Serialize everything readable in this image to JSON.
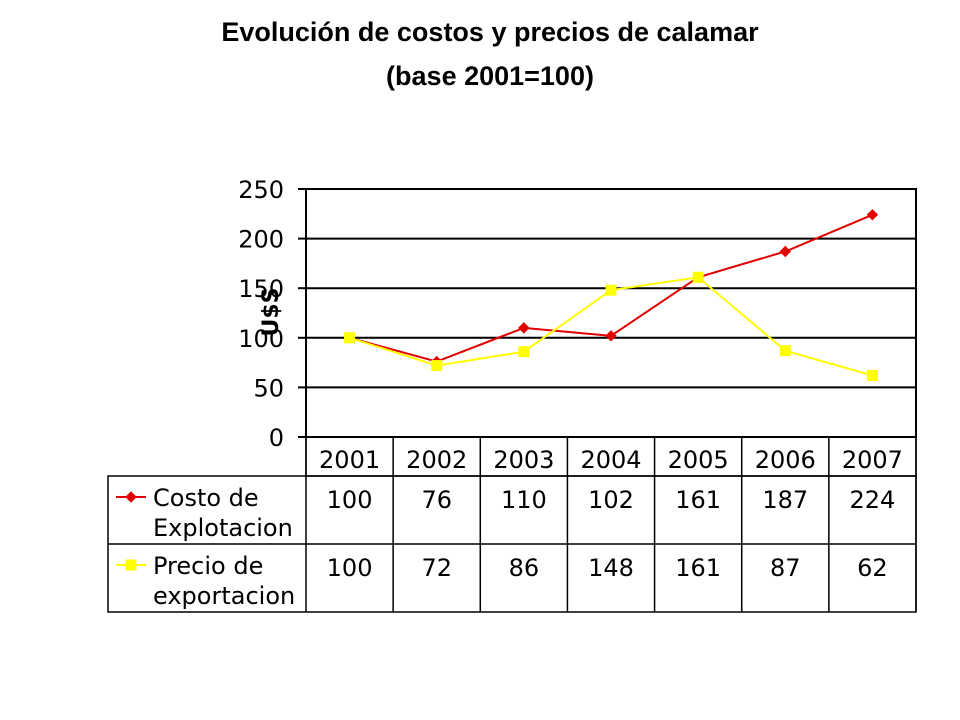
{
  "chart_data": {
    "type": "line",
    "title": "Evolución de costos y precios de calamar",
    "subtitle": "(base 2001=100)",
    "ylabel": "U$S",
    "xlabel": "",
    "categories": [
      "2001",
      "2002",
      "2003",
      "2004",
      "2005",
      "2006",
      "2007"
    ],
    "ylim": [
      0,
      250
    ],
    "yticks": [
      0,
      50,
      100,
      150,
      200,
      250
    ],
    "grid": true,
    "legend": "data-table-below",
    "series": [
      {
        "name_lines": [
          "Costo de",
          "Explotacion"
        ],
        "values": [
          100,
          76,
          110,
          102,
          161,
          187,
          224
        ],
        "color": "#e00000",
        "marker": "diamond"
      },
      {
        "name_lines": [
          "Precio de",
          "exportacion"
        ],
        "values": [
          100,
          72,
          86,
          148,
          161,
          87,
          62
        ],
        "color": "#ffff00",
        "marker": "square"
      }
    ]
  }
}
